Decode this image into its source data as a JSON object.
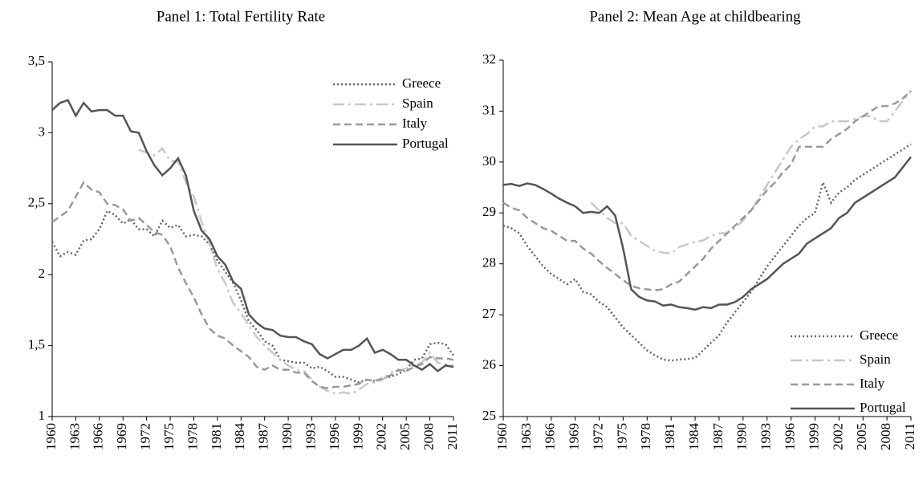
{
  "chart_data": [
    {
      "type": "line",
      "title": "Panel 1: Total Fertility Rate",
      "x": [
        1960,
        1961,
        1962,
        1963,
        1964,
        1965,
        1966,
        1967,
        1968,
        1969,
        1970,
        1971,
        1972,
        1973,
        1974,
        1975,
        1976,
        1977,
        1978,
        1979,
        1980,
        1981,
        1982,
        1983,
        1984,
        1985,
        1986,
        1987,
        1988,
        1989,
        1990,
        1991,
        1992,
        1993,
        1994,
        1995,
        1996,
        1997,
        1998,
        1999,
        2000,
        2001,
        2002,
        2003,
        2004,
        2005,
        2006,
        2007,
        2008,
        2009,
        2010,
        2011
      ],
      "xlim": [
        1960,
        2011
      ],
      "xticks": [
        1960,
        1963,
        1966,
        1969,
        1972,
        1975,
        1978,
        1981,
        1984,
        1987,
        1990,
        1993,
        1996,
        1999,
        2002,
        2005,
        2008,
        2011
      ],
      "ylim": [
        1,
        3.5
      ],
      "yticks": [
        1,
        {
          "value": 1.5,
          "label": "1,5"
        },
        2,
        {
          "value": 2.5,
          "label": "2,5"
        },
        3,
        {
          "value": 3.5,
          "label": "3,5"
        }
      ],
      "legend": "upper right",
      "series": [
        {
          "name": "Greece",
          "color": "#666666",
          "linestyle": "dotted",
          "values": [
            2.23,
            2.13,
            2.16,
            2.14,
            2.24,
            2.25,
            2.32,
            2.45,
            2.42,
            2.36,
            2.39,
            2.32,
            2.32,
            2.27,
            2.38,
            2.33,
            2.35,
            2.27,
            2.28,
            2.27,
            2.21,
            2.1,
            2.02,
            1.94,
            1.82,
            1.67,
            1.61,
            1.53,
            1.5,
            1.4,
            1.39,
            1.38,
            1.38,
            1.34,
            1.35,
            1.32,
            1.28,
            1.28,
            1.26,
            1.24,
            1.26,
            1.25,
            1.27,
            1.28,
            1.3,
            1.33,
            1.4,
            1.41,
            1.51,
            1.52,
            1.51,
            1.43
          ]
        },
        {
          "name": "Spain",
          "color": "#c8c8c8",
          "linestyle": "dashdot",
          "values": [
            null,
            null,
            null,
            null,
            null,
            null,
            null,
            null,
            null,
            null,
            null,
            2.88,
            2.86,
            2.84,
            2.89,
            2.8,
            2.8,
            2.65,
            2.55,
            2.37,
            2.22,
            2.04,
            1.94,
            1.8,
            1.73,
            1.64,
            1.56,
            1.5,
            1.45,
            1.4,
            1.36,
            1.33,
            1.32,
            1.26,
            1.21,
            1.18,
            1.16,
            1.17,
            1.16,
            1.19,
            1.23,
            1.24,
            1.26,
            1.31,
            1.32,
            1.34,
            1.36,
            1.38,
            1.45,
            1.38,
            1.37,
            1.36
          ]
        },
        {
          "name": "Italy",
          "color": "#999999",
          "linestyle": "dashed",
          "values": [
            2.37,
            2.41,
            2.45,
            2.55,
            2.65,
            2.6,
            2.58,
            2.5,
            2.49,
            2.46,
            2.38,
            2.4,
            2.35,
            2.3,
            2.28,
            2.2,
            2.05,
            1.94,
            1.84,
            1.72,
            1.62,
            1.57,
            1.55,
            1.5,
            1.46,
            1.42,
            1.35,
            1.33,
            1.36,
            1.33,
            1.33,
            1.31,
            1.31,
            1.25,
            1.21,
            1.2,
            1.21,
            1.21,
            1.22,
            1.23,
            1.26,
            1.25,
            1.27,
            1.29,
            1.33,
            1.32,
            1.35,
            1.37,
            1.42,
            1.41,
            1.41,
            1.4
          ]
        },
        {
          "name": "Portugal",
          "color": "#555555",
          "linestyle": "solid",
          "values": [
            3.16,
            3.21,
            3.23,
            3.12,
            3.21,
            3.15,
            3.16,
            3.16,
            3.12,
            3.12,
            3.01,
            3.0,
            2.87,
            2.77,
            2.7,
            2.75,
            2.82,
            2.7,
            2.45,
            2.31,
            2.25,
            2.13,
            2.07,
            1.95,
            1.9,
            1.72,
            1.66,
            1.62,
            1.61,
            1.57,
            1.56,
            1.56,
            1.53,
            1.51,
            1.44,
            1.41,
            1.44,
            1.47,
            1.47,
            1.5,
            1.55,
            1.45,
            1.47,
            1.44,
            1.4,
            1.4,
            1.36,
            1.33,
            1.37,
            1.32,
            1.36,
            1.35
          ]
        }
      ]
    },
    {
      "type": "line",
      "title": "Panel 2: Mean Age at childbearing",
      "x": [
        1960,
        1961,
        1962,
        1963,
        1964,
        1965,
        1966,
        1967,
        1968,
        1969,
        1970,
        1971,
        1972,
        1973,
        1974,
        1975,
        1976,
        1977,
        1978,
        1979,
        1980,
        1981,
        1982,
        1983,
        1984,
        1985,
        1986,
        1987,
        1988,
        1989,
        1990,
        1991,
        1992,
        1993,
        1994,
        1995,
        1996,
        1997,
        1998,
        1999,
        2000,
        2001,
        2002,
        2003,
        2004,
        2005,
        2006,
        2007,
        2008,
        2009,
        2010,
        2011
      ],
      "xlim": [
        1960,
        2011
      ],
      "xticks": [
        1960,
        1963,
        1966,
        1969,
        1972,
        1975,
        1978,
        1981,
        1984,
        1987,
        1990,
        1993,
        1996,
        1999,
        2002,
        2005,
        2008,
        2011
      ],
      "ylim": [
        25,
        32
      ],
      "yticks": [
        25,
        26,
        27,
        28,
        29,
        30,
        31,
        32
      ],
      "legend": "lower right",
      "series": [
        {
          "name": "Greece",
          "color": "#666666",
          "linestyle": "dotted",
          "values": [
            28.75,
            28.7,
            28.6,
            28.35,
            28.15,
            27.95,
            27.8,
            27.7,
            27.6,
            27.7,
            27.45,
            27.4,
            27.25,
            27.15,
            26.95,
            26.75,
            26.6,
            26.45,
            26.3,
            26.2,
            26.12,
            26.1,
            26.12,
            26.13,
            26.15,
            26.3,
            26.45,
            26.6,
            26.85,
            27.05,
            27.25,
            27.45,
            27.7,
            27.95,
            28.15,
            28.35,
            28.55,
            28.75,
            28.9,
            29.0,
            29.6,
            29.2,
            29.4,
            29.5,
            29.65,
            29.75,
            29.85,
            29.95,
            30.05,
            30.15,
            30.25,
            30.35
          ]
        },
        {
          "name": "Spain",
          "color": "#c8c8c8",
          "linestyle": "dashdot",
          "values": [
            null,
            null,
            null,
            null,
            null,
            null,
            null,
            null,
            null,
            null,
            null,
            29.2,
            29.05,
            28.9,
            28.8,
            28.8,
            28.55,
            28.45,
            28.35,
            28.25,
            28.22,
            28.2,
            28.33,
            28.38,
            28.43,
            28.46,
            28.55,
            28.6,
            28.6,
            28.7,
            28.85,
            29.05,
            29.3,
            29.55,
            29.8,
            30.05,
            30.3,
            30.45,
            30.55,
            30.7,
            30.7,
            30.8,
            30.8,
            30.8,
            30.85,
            30.9,
            30.9,
            30.8,
            30.8,
            31.0,
            31.2,
            31.4
          ]
        },
        {
          "name": "Italy",
          "color": "#999999",
          "linestyle": "dashed",
          "values": [
            29.2,
            29.1,
            29.05,
            28.9,
            28.8,
            28.7,
            28.65,
            28.55,
            28.45,
            28.45,
            28.3,
            28.2,
            28.05,
            27.92,
            27.8,
            27.68,
            27.57,
            27.52,
            27.5,
            27.48,
            27.5,
            27.6,
            27.65,
            27.8,
            27.95,
            28.1,
            28.3,
            28.45,
            28.6,
            28.75,
            28.9,
            29.05,
            29.25,
            29.45,
            29.6,
            29.8,
            29.95,
            30.3,
            30.3,
            30.3,
            30.3,
            30.45,
            30.55,
            30.65,
            30.8,
            30.9,
            31.0,
            31.1,
            31.1,
            31.15,
            31.25,
            31.4
          ]
        },
        {
          "name": "Portugal",
          "color": "#555555",
          "linestyle": "solid",
          "values": [
            29.55,
            29.57,
            29.53,
            29.58,
            29.55,
            29.47,
            29.38,
            29.28,
            29.2,
            29.13,
            29.0,
            29.02,
            29.0,
            29.13,
            28.95,
            28.3,
            27.5,
            27.35,
            27.28,
            27.26,
            27.18,
            27.2,
            27.15,
            27.13,
            27.1,
            27.15,
            27.13,
            27.2,
            27.2,
            27.25,
            27.35,
            27.5,
            27.6,
            27.7,
            27.85,
            28.0,
            28.1,
            28.2,
            28.4,
            28.5,
            28.6,
            28.7,
            28.9,
            29.0,
            29.2,
            29.3,
            29.4,
            29.5,
            29.6,
            29.7,
            29.9,
            30.1
          ]
        }
      ]
    }
  ]
}
